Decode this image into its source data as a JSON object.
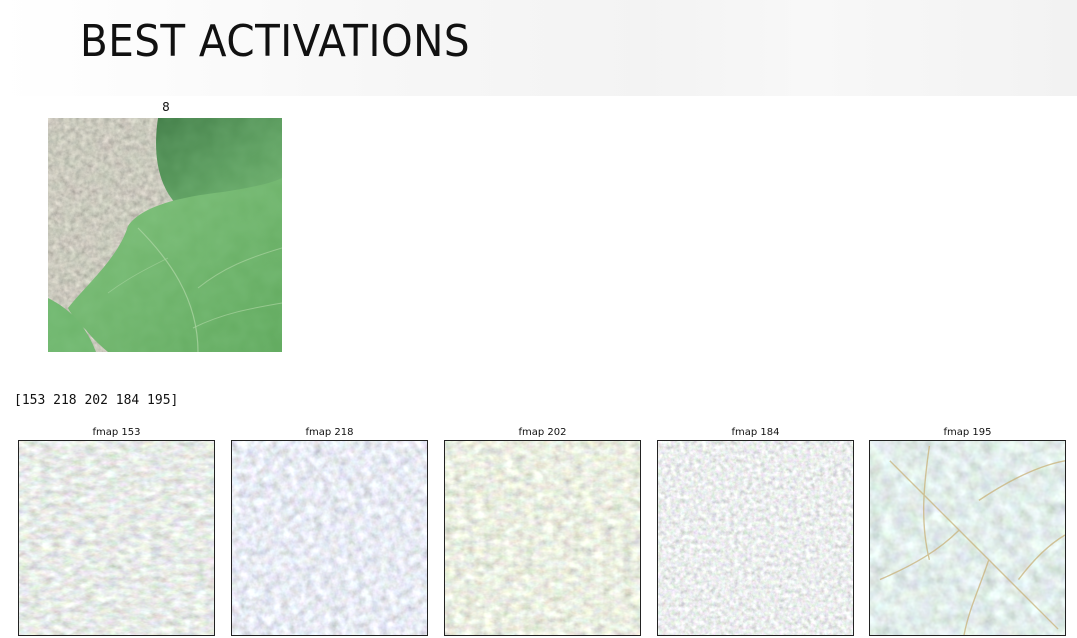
{
  "title": "BEST ACTIVATIONS",
  "input": {
    "label": "8",
    "image": "leaf-photo"
  },
  "indices_text": "[153 218 202 184 195]",
  "fmaps": [
    {
      "title": "fmap 153",
      "image": "feature-visualization"
    },
    {
      "title": "fmap 218",
      "image": "feature-visualization"
    },
    {
      "title": "fmap 202",
      "image": "feature-visualization"
    },
    {
      "title": "fmap 184",
      "image": "feature-visualization"
    },
    {
      "title": "fmap 195",
      "image": "feature-visualization"
    }
  ]
}
